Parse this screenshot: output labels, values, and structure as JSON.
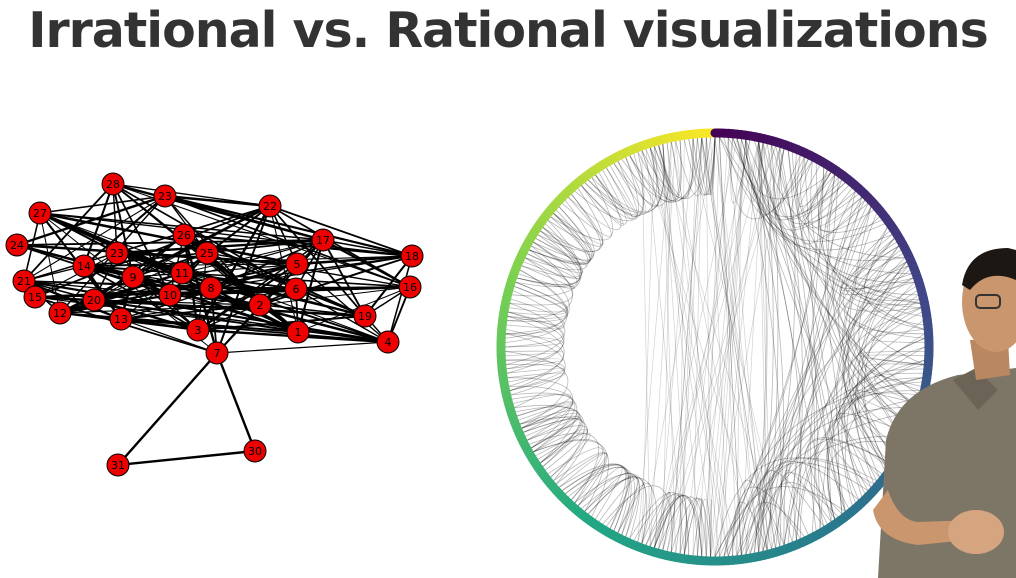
{
  "slide": {
    "title": "Irrational vs. Rational visualizations"
  },
  "network": {
    "node_color": "#ee0000",
    "edge_color": "#000000",
    "nodes": [
      "28",
      "23",
      "27",
      "22",
      "24",
      "26",
      "17",
      "18",
      "23",
      "25",
      "5",
      "21",
      "14",
      "9",
      "11",
      "16",
      "15",
      "20",
      "10",
      "8",
      "6",
      "12",
      "13",
      "2",
      "19",
      "3",
      "1",
      "4",
      "7",
      "31",
      "30"
    ]
  },
  "circle_plot": {
    "colors": [
      "#fde725",
      "#7ad151",
      "#22a884",
      "#2a788e",
      "#414487",
      "#440154"
    ]
  },
  "presenter": {
    "shirt_color": "#7d7566",
    "skin_color": "#c9966e"
  }
}
